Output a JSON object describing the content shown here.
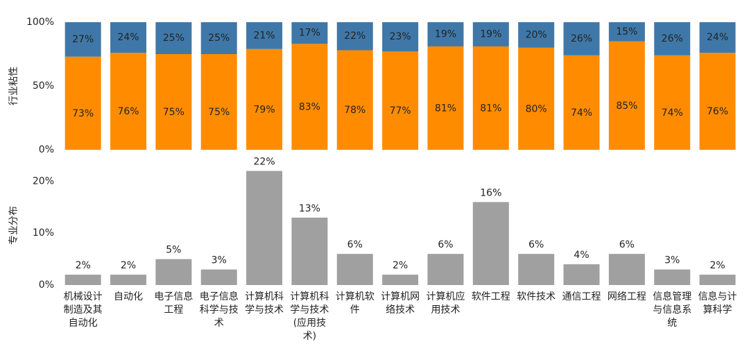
{
  "chart_data": [
    {
      "type": "stacked-bar",
      "ylabel": "行业粘性",
      "categories": [
        "机械设计制造及其自动化",
        "自动化",
        "电子信息工程",
        "电子信息科学与技术",
        "计算机科学与技术",
        "计算机科学与技术(应用技术)",
        "计算机软件",
        "计算机网络技术",
        "计算机应用技术",
        "软件工程",
        "软件技术",
        "通信工程",
        "网络工程",
        "信息管理与信息系统",
        "信息与计算科学"
      ],
      "series": [
        {
          "color": "#ff8c00",
          "values": [
            73,
            76,
            75,
            75,
            79,
            83,
            78,
            77,
            81,
            81,
            80,
            74,
            85,
            74,
            76
          ],
          "value_labels": [
            "73%",
            "76%",
            "75%",
            "75%",
            "79%",
            "83%",
            "78%",
            "77%",
            "81%",
            "81%",
            "80%",
            "74%",
            "85%",
            "74%",
            "76%"
          ]
        },
        {
          "color": "#3f78a8",
          "values": [
            27,
            24,
            25,
            25,
            21,
            17,
            22,
            23,
            19,
            19,
            20,
            26,
            15,
            26,
            24
          ],
          "value_labels": [
            "27%",
            "24%",
            "25%",
            "25%",
            "21%",
            "17%",
            "22%",
            "23%",
            "19%",
            "19%",
            "20%",
            "26%",
            "15%",
            "26%",
            "24%"
          ]
        }
      ],
      "ylim": [
        0,
        100
      ],
      "yticks": [
        {
          "value": 0,
          "label": "0%"
        },
        {
          "value": 50,
          "label": "50%"
        },
        {
          "value": 100,
          "label": "100%"
        }
      ]
    },
    {
      "type": "bar",
      "ylabel": "专业分布",
      "color": "#a0a0a0",
      "values": [
        2,
        2,
        5,
        3,
        22,
        13,
        6,
        2,
        6,
        16,
        6,
        4,
        6,
        3,
        2
      ],
      "value_labels": [
        "2%",
        "2%",
        "5%",
        "3%",
        "22%",
        "13%",
        "6%",
        "2%",
        "6%",
        "16%",
        "6%",
        "4%",
        "6%",
        "3%",
        "2%"
      ],
      "ylim": [
        0,
        23
      ],
      "yticks": [
        {
          "value": 0,
          "label": "0%"
        },
        {
          "value": 10,
          "label": "10%"
        },
        {
          "value": 20,
          "label": "20%"
        }
      ]
    }
  ]
}
